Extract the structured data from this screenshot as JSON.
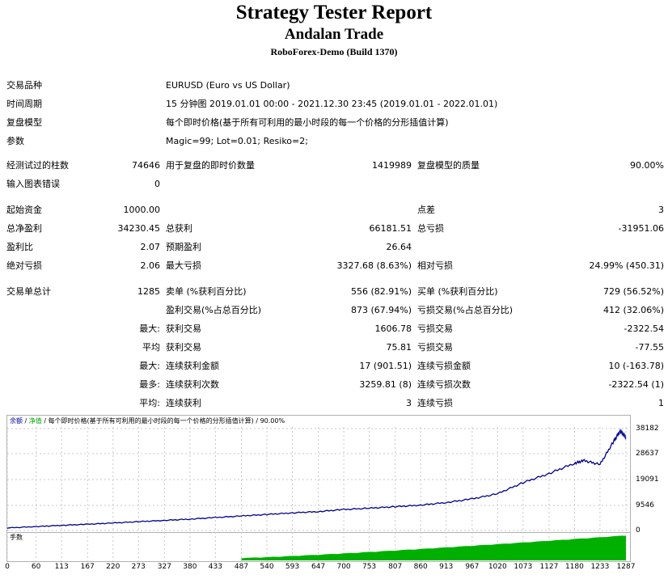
{
  "header": {
    "title": "Strategy Tester Report",
    "expert": "Andalan Trade",
    "server": "RoboForex-Demo (Build 1370)"
  },
  "settings": {
    "symbol_label": "交易品种",
    "symbol_value": "EURUSD (Euro vs US Dollar)",
    "period_label": "时间周期",
    "period_value": "15 分钟图 2019.01.01 00:00 - 2021.12.30 23:45 (2019.01.01 - 2022.01.01)",
    "model_label": "复盘模型",
    "model_value": "每个即时价格(基于所有可利用的最小时段的每一个价格的分形插值计算)",
    "params_label": "参数",
    "params_value": "Magic=99; Lot=0.01; Resiko=2;"
  },
  "quality": {
    "bars_label": "经测试过的柱数",
    "bars_value": "74646",
    "ticks_label": "用于复盘的即时价数量",
    "ticks_value": "1419989",
    "quality_label": "复盘模型的质量",
    "quality_value": "90.00%",
    "errors_label": "输入图表错误",
    "errors_value": "0"
  },
  "results": {
    "deposit_label": "起始资金",
    "deposit_value": "1000.00",
    "spread_label": "点差",
    "spread_value": "3",
    "net_label": "总净盈利",
    "net_value": "34230.45",
    "gross_profit_label": "总获利",
    "gross_profit_value": "66181.51",
    "gross_loss_label": "总亏损",
    "gross_loss_value": "-31951.06",
    "pf_label": "盈利比",
    "pf_value": "2.07",
    "expected_label": "预期盈利",
    "expected_value": "26.64",
    "abs_dd_label": "绝对亏损",
    "abs_dd_value": "2.06",
    "max_dd_label": "最大亏损",
    "max_dd_value": "3327.68 (8.63%)",
    "rel_dd_label": "相对亏损",
    "rel_dd_value": "24.99% (450.31)"
  },
  "trades": {
    "total_label": "交易单总计",
    "total_value": "1285",
    "short_label": "卖单 (%获利百分比)",
    "short_value": "556 (82.91%)",
    "long_label": "买单 (%获利百分比)",
    "long_value": "729 (56.52%)",
    "profit_trades_label": "盈利交易(%占总百分比)",
    "profit_trades_value": "873 (67.94%)",
    "loss_trades_label": "亏损交易(%占总百分比)",
    "loss_trades_value": "412 (32.06%)",
    "largest_label": "最大:",
    "largest_profit_label": "获利交易",
    "largest_profit_value": "1606.78",
    "largest_loss_label": "亏损交易",
    "largest_loss_value": "-2322.54",
    "average_label": "平均",
    "average_profit_label": "获利交易",
    "average_profit_value": "75.81",
    "average_loss_label": "亏损交易",
    "average_loss_value": "-77.55",
    "max_label": "最大:",
    "max_consec_wins_label": "连续获利金额",
    "max_consec_wins_value": "17 (901.51)",
    "max_consec_losses_label": "连续亏损金额",
    "max_consec_losses_value": "10 (-163.78)",
    "maximal_label": "最多:",
    "maximal_consec_profit_label": "连续获利次数",
    "maximal_consec_profit_value": "3259.81 (8)",
    "maximal_consec_loss_label": "连续亏损次数",
    "maximal_consec_loss_value": "-2322.54 (1)",
    "avg_label": "平均:",
    "avg_consec_wins_label": "连续获利",
    "avg_consec_wins_value": "3",
    "avg_consec_losses_label": "连续亏损",
    "avg_consec_losses_value": "1"
  },
  "chart_legend": {
    "balance": "余额",
    "sep1": " / ",
    "equity": "净值",
    "rest": " / 每个即时价格(基于所有可利用的最小时段的每一个价格的分形插值计算) / 90.00%"
  },
  "volume_label": "手数",
  "colors": {
    "balance": "#00008b",
    "volume": "#00b000",
    "grid": "#c8c8c8"
  },
  "chart_data": {
    "type": "line",
    "ylabels": [
      "38182",
      "28637",
      "19091",
      "9546",
      "0"
    ],
    "ylim": [
      0,
      40000
    ],
    "xlabels": [
      "0",
      "60",
      "113",
      "167",
      "220",
      "273",
      "327",
      "380",
      "433",
      "487",
      "540",
      "593",
      "647",
      "700",
      "753",
      "807",
      "860",
      "913",
      "967",
      "1020",
      "1073",
      "1127",
      "1180",
      "1233",
      "1287"
    ],
    "x": [
      0,
      60,
      113,
      167,
      220,
      273,
      327,
      380,
      433,
      487,
      540,
      593,
      647,
      700,
      753,
      807,
      860,
      913,
      967,
      1020,
      1073,
      1127,
      1180,
      1200,
      1233,
      1260,
      1275,
      1287
    ],
    "series": [
      {
        "values": [
          1000,
          1500,
          2000,
          2400,
          2900,
          3400,
          3900,
          4400,
          5000,
          5600,
          6200,
          6800,
          7300,
          8100,
          8600,
          9200,
          9800,
          10800,
          12200,
          14200,
          18500,
          22000,
          26000,
          27000,
          25500,
          34000,
          38500,
          36000
        ]
      }
    ],
    "volume": {
      "x_end": 1287,
      "start_x": 487,
      "start_level": 0.1,
      "end_level": 1.0
    }
  }
}
